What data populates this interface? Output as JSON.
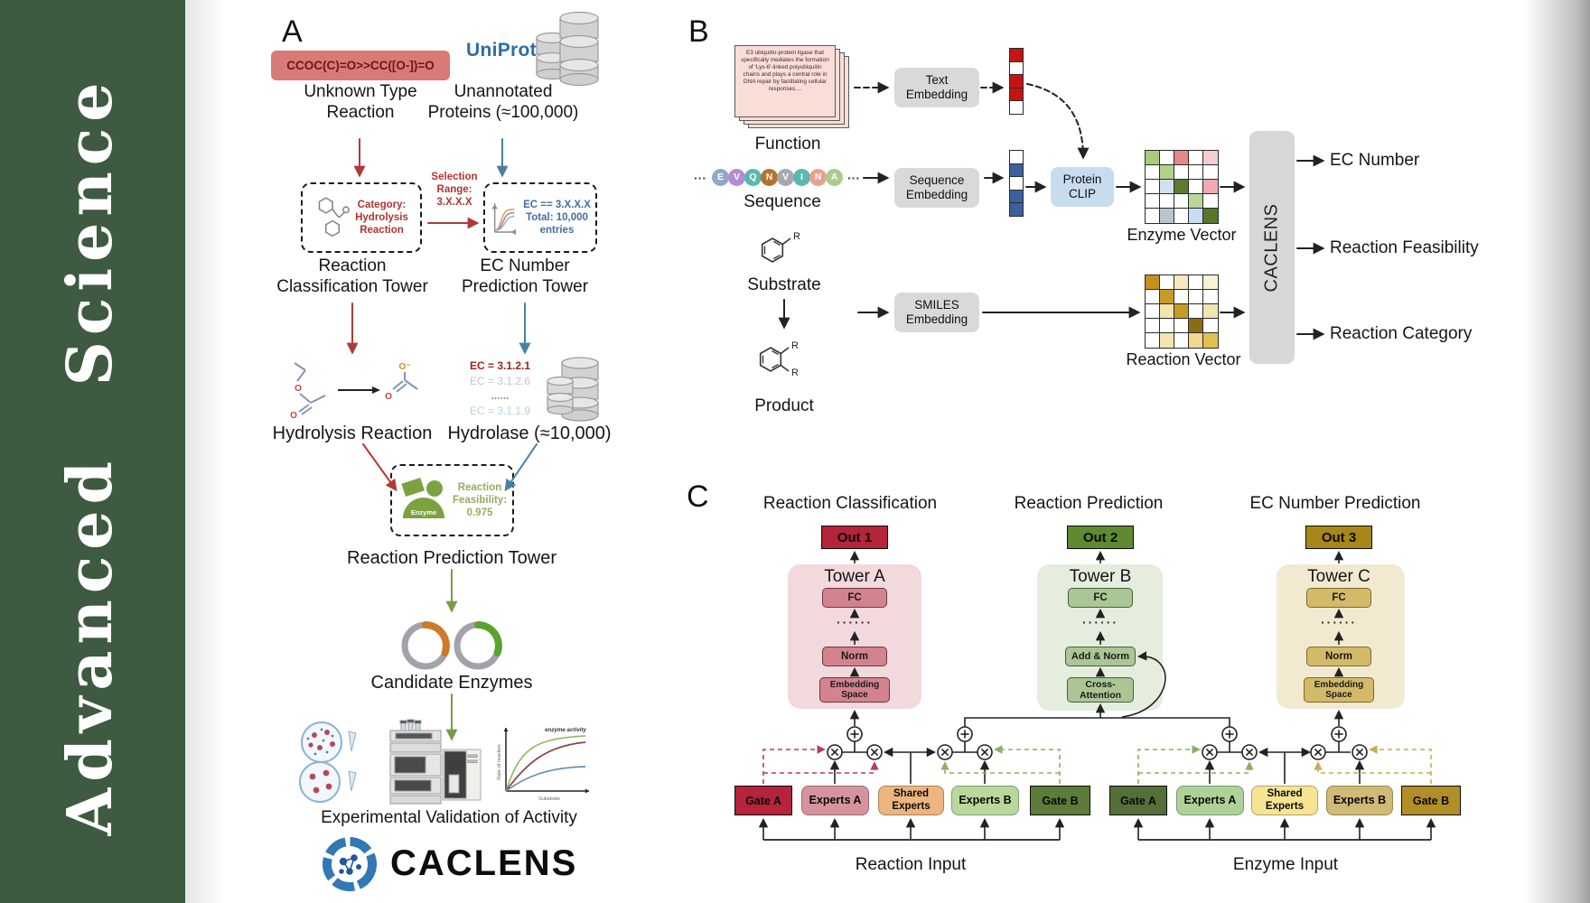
{
  "journal": {
    "name": "Advanced Science"
  },
  "panelA": {
    "label": "A",
    "smiles": "CCOC(C)=O>>CC([O-])=O",
    "unknown_reaction_label": "Unknown Type\nReaction",
    "uniprot_logo": "UniProt",
    "unannotated_label": "Unannotated\nProteins (≈100,000)",
    "category_box_text": "Category:\nHydrolysis\nReaction",
    "selection_text": "Selection\nRange:\n3.X.X.X",
    "ec_filter_text": "EC == 3.X.X.X\nTotal: 10,000\nentries",
    "classification_tower_label": "Reaction\nClassification Tower",
    "ec_tower_label": "EC Number\nPrediction Tower",
    "hydrolysis_label": "Hydrolysis Reaction",
    "hydrolase_label": "Hydrolase (≈10,000)",
    "ec_list": [
      {
        "text": "EC = 3.1.2.1",
        "color": "#9e1f1f",
        "bold": true
      },
      {
        "text": "EC = 3.1.2.6",
        "color": "#c6c6c6",
        "bold": false
      },
      {
        "text": "......",
        "color": "#8f8f8f",
        "bold": true
      },
      {
        "text": "EC = 3.1.1.9",
        "color": "#b7cfe6",
        "bold": false
      }
    ],
    "enzyme_icon_label": "Enzyme",
    "feasibility_text": "Reaction\nFeasibility:\n0.975",
    "prediction_tower_label": "Reaction Prediction Tower",
    "candidate_label": "Candidate Enzymes",
    "activity_plot": {
      "annotation": "enzyme activity",
      "ylabel": "Rate of reaction",
      "xlabel": "Substrate"
    },
    "validation_label": "Experimental Validation of Activity",
    "logo_text": "CACLENS",
    "atom_o": "O",
    "atom_o_minus": "O⁻"
  },
  "panelB": {
    "label": "B",
    "function_card_text": "E3 ubiquitin-protein ligase that specifically mediates the formation of 'Lys-6'-linked polyubiquitin chains and plays a central role in DNA repair by facilitating cellular responses....",
    "function_label": "Function",
    "sequence_label": "Sequence",
    "ellipsis": "···",
    "sequence_letters": [
      {
        "ch": "E",
        "color": "#8fa8cc"
      },
      {
        "ch": "V",
        "color": "#b48cd4"
      },
      {
        "ch": "Q",
        "color": "#5bb8ae"
      },
      {
        "ch": "N",
        "color": "#b5722e"
      },
      {
        "ch": "V",
        "color": "#a8a8b0"
      },
      {
        "ch": "I",
        "color": "#5bb8ae"
      },
      {
        "ch": "N",
        "color": "#e8a091"
      },
      {
        "ch": "A",
        "color": "#aecb8e"
      }
    ],
    "substrate_label": "Substrate",
    "product_label": "Product",
    "r_group": "R",
    "text_embedding_label": "Text\nEmbedding",
    "sequence_embedding_label": "Sequence\nEmbedding",
    "smiles_embedding_label": "SMILES\nEmbedding",
    "protein_clip_label": "Protein\nCLIP",
    "text_vector": [
      "#c41414",
      "#ffffff",
      "#c41414",
      "#c41414",
      "#ffffff"
    ],
    "sequence_vector": [
      "#ffffff",
      "#3c5f9e",
      "#ffffff",
      "#3c5f9e",
      "#3c5f9e"
    ],
    "enzyme_matrix": [
      [
        "#a9cc7c",
        "#ffffff",
        "#e58787",
        "#ffffff",
        "#f6cdd2"
      ],
      [
        "#ffffff",
        "#b3d28b",
        "#ffffff",
        "#ffffff",
        "#ffffff"
      ],
      [
        "#ffffff",
        "#d0e1f1",
        "#5c7c2f",
        "#ffffff",
        "#f0abb3"
      ],
      [
        "#ffffff",
        "#ffffff",
        "#ffffff",
        "#b8d695",
        "#ffffff"
      ],
      [
        "#ffffff",
        "#bac5d0",
        "#ffffff",
        "#c7ddf1",
        "#57772d"
      ]
    ],
    "reaction_matrix": [
      [
        "#c2901d",
        "#ffffff",
        "#f5e9bd",
        "#ffffff",
        "#f9f1d3"
      ],
      [
        "#ffffff",
        "#c79b27",
        "#ffffff",
        "#ffffff",
        "#ffffff"
      ],
      [
        "#ffffff",
        "#f3e5b2",
        "#c79b27",
        "#ffffff",
        "#f3e5b2"
      ],
      [
        "#ffffff",
        "#ffffff",
        "#ffffff",
        "#8a6d13",
        "#ffffff"
      ],
      [
        "#ffffff",
        "#f3e5b2",
        "#ffffff",
        "#f0d990",
        "#e2c04e"
      ]
    ],
    "enzyme_vector_label": "Enzyme Vector",
    "reaction_vector_label": "Reaction Vector",
    "caclens_label": "CACLENS",
    "outputs": [
      "EC Number",
      "Reaction Feasibility",
      "Reaction Category"
    ]
  },
  "panelC": {
    "label": "C",
    "headers": [
      "Reaction Classification",
      "Reaction Prediction",
      "EC Number Prediction"
    ],
    "towers": [
      {
        "out": "Out 1",
        "name": "Tower A",
        "fc": "FC",
        "dots": "······",
        "mid": "Norm",
        "bottom": "Embedding\nSpace"
      },
      {
        "out": "Out 2",
        "name": "Tower B",
        "fc": "FC",
        "dots": "······",
        "mid": "Add & Norm",
        "bottom": "Cross-\nAttention"
      },
      {
        "out": "Out 3",
        "name": "Tower C",
        "fc": "FC",
        "dots": "······",
        "mid": "Norm",
        "bottom": "Embedding\nSpace"
      }
    ],
    "groups": [
      {
        "gate_a": "Gate A",
        "experts_a": "Experts A",
        "shared": "Shared\nExperts",
        "experts_b": "Experts B",
        "gate_b": "Gate B",
        "input_label": "Reaction Input"
      },
      {
        "gate_a": "Gate A",
        "experts_a": "Experts A",
        "shared": "Shared\nExperts",
        "experts_b": "Experts B",
        "gate_b": "Gate B",
        "input_label": "Enzyme Input"
      }
    ]
  },
  "colors": {
    "sidebar_green": "#3e5a40",
    "smiles_box": "#d87a76",
    "red_accent": "#b03a3a",
    "blue_accent": "#4a7fa5",
    "green_accent": "#7a9a4a",
    "uniprot_blue": "#2b6da8",
    "enzyme_green": "#7ba23f",
    "gray_box": "#d9d9d9",
    "protein_clip_blue": "#c8dcf0",
    "out1": "#b5243a",
    "out2": "#5f8a32",
    "out3": "#a8861a",
    "tower_a_bg": "#f2d9dd",
    "tower_b_bg": "#e4edde",
    "tower_c_bg": "#f2ead0",
    "gate_a_reaction": "#b5243a",
    "experts_a_reaction": "#d6939e",
    "shared_reaction": "#edb57f",
    "experts_b_reaction": "#b9d89c",
    "gate_b_reaction": "#5c7c3a",
    "gate_a_enzyme": "#556f39",
    "experts_a_enzyme": "#aed197",
    "shared_enzyme": "#f6e493",
    "experts_b_enzyme": "#cfba76",
    "gate_b_enzyme": "#b28f26"
  }
}
